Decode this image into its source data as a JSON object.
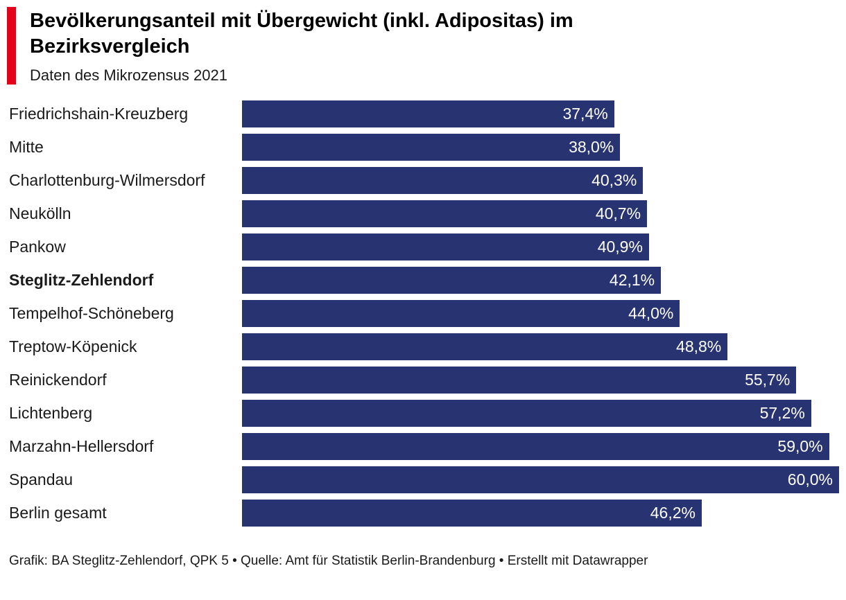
{
  "header": {
    "title": "Bevölkerungsanteil mit Übergewicht (inkl. Adipositas) im Bezirksvergleich",
    "subtitle": "Daten des Mikrozensus 2021",
    "accent_color": "#e2001a"
  },
  "footer": {
    "text": "Grafik: BA Steglitz-Zehlendorf, QPK 5 • Quelle: Amt für Statistik Berlin-Brandenburg • Erstellt mit Datawrapper"
  },
  "chart_data": {
    "type": "bar",
    "orientation": "horizontal",
    "title": "Bevölkerungsanteil mit Übergewicht (inkl. Adipositas) im Bezirksvergleich",
    "subtitle": "Daten des Mikrozensus 2021",
    "categories": [
      "Friedrichshain-Kreuzberg",
      "Mitte",
      "Charlottenburg-Wilmersdorf",
      "Neukölln",
      "Pankow",
      "Steglitz-Zehlendorf",
      "Tempelhof-Schöneberg",
      "Treptow-Köpenick",
      "Reinickendorf",
      "Lichtenberg",
      "Marzahn-Hellersdorf",
      "Spandau",
      "Berlin gesamt"
    ],
    "values": [
      37.4,
      38.0,
      40.3,
      40.7,
      40.9,
      42.1,
      44.0,
      48.8,
      55.7,
      57.2,
      59.0,
      60.0,
      46.2
    ],
    "value_labels": [
      "37,4%",
      "38,0%",
      "40,3%",
      "40,7%",
      "40,9%",
      "42,1%",
      "44,0%",
      "48,8%",
      "55,7%",
      "57,2%",
      "59,0%",
      "60,0%",
      "46,2%"
    ],
    "emphasized_category": "Steglitz-Zehlendorf",
    "xlim": [
      0,
      60
    ],
    "grid": false,
    "legend": false,
    "bar_color": "#283371",
    "value_label_color": "#ffffff",
    "value_label_position": "inside-end"
  }
}
